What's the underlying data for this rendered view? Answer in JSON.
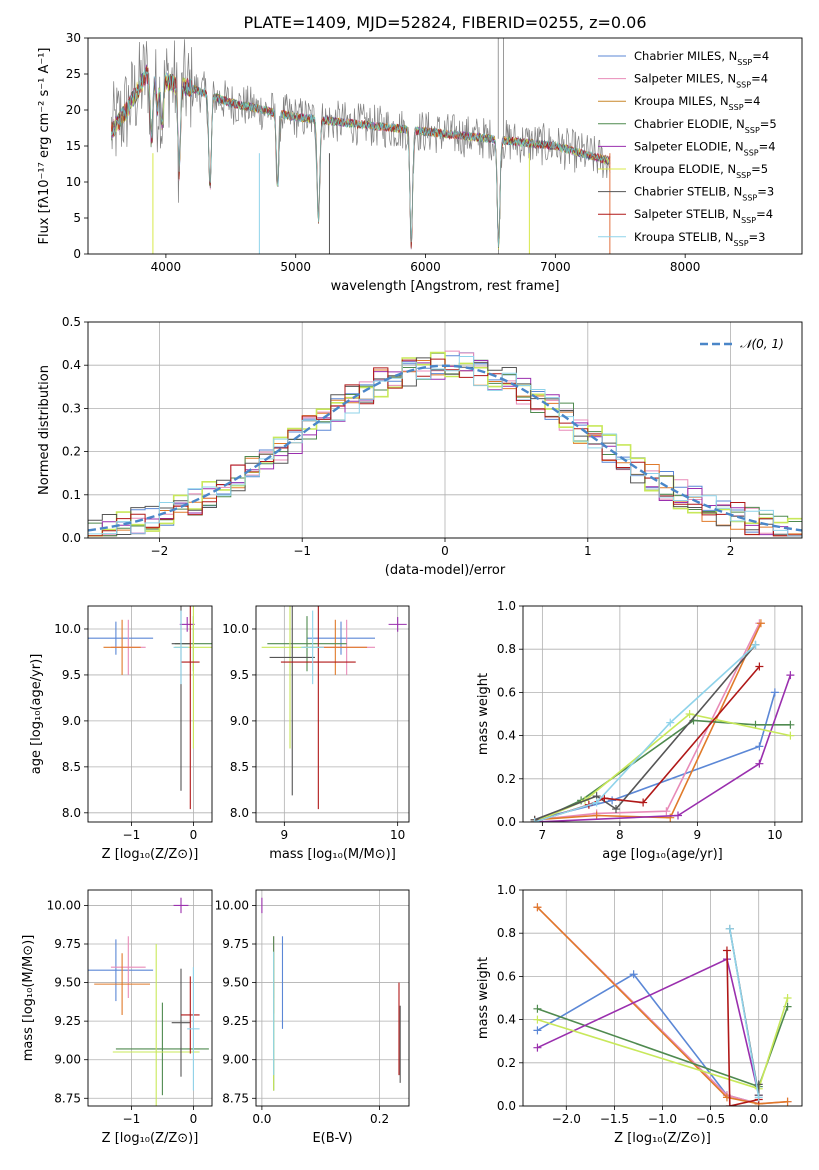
{
  "figure": {
    "title": "PLATE=1409, MJD=52824, FIBERID=0255, z=0.06"
  },
  "chart_data": [
    {
      "id": "spectrum",
      "type": "line",
      "xlabel": "wavelength [Angstrom, rest frame]",
      "ylabel": "Flux [fλ10⁻¹⁷ erg cm⁻² s⁻¹ A⁻¹]",
      "xlim": [
        3400,
        8900
      ],
      "ylim": [
        0,
        30
      ],
      "xticks": [
        4000,
        5000,
        6000,
        7000,
        8000
      ],
      "yticks": [
        0,
        5,
        10,
        15,
        20,
        25,
        30
      ],
      "legend_position": "top-right",
      "series": [
        {
          "name": "Chabrier MILES, N",
          "sub": "SSP",
          "suffix": "=4",
          "color": "#5b87d6"
        },
        {
          "name": "Salpeter MILES, N",
          "sub": "SSP",
          "suffix": "=4",
          "color": "#e88bb8"
        },
        {
          "name": "Kroupa MILES, N",
          "sub": "SSP",
          "suffix": "=4",
          "color": "#c9872a"
        },
        {
          "name": "Chabrier ELODIE, N",
          "sub": "SSP",
          "suffix": "=5",
          "color": "#4f8a4f"
        },
        {
          "name": "Salpeter ELODIE, N",
          "sub": "SSP",
          "suffix": "=4",
          "color": "#9a2fae"
        },
        {
          "name": "Kroupa ELODIE, N",
          "sub": "SSP",
          "suffix": "=5",
          "color": "#d8e84a"
        },
        {
          "name": "Chabrier STELIB, N",
          "sub": "SSP",
          "suffix": "=3",
          "color": "#555555"
        },
        {
          "name": "Salpeter STELIB, N",
          "sub": "SSP",
          "suffix": "=4",
          "color": "#b01818"
        },
        {
          "name": "Kroupa STELIB, N",
          "sub": "SSP",
          "suffix": "=3",
          "color": "#8fd3ea"
        }
      ],
      "data_color": "#808080",
      "model_color": "#6ed0d0",
      "red_tail_color": "#e07040",
      "continuum_x": [
        3580,
        3700,
        3850,
        4000,
        4200,
        4500,
        5000,
        5500,
        6000,
        6500,
        7000,
        7400
      ],
      "continuum_y": [
        17,
        20,
        25,
        24,
        23,
        21,
        19,
        18,
        17,
        16,
        15,
        13
      ]
    },
    {
      "id": "residuals",
      "type": "area",
      "xlabel": "(data-model)/error",
      "ylabel": "Normed distribution",
      "xlim": [
        -2.5,
        2.5
      ],
      "ylim": [
        0,
        0.5
      ],
      "xticks": [
        -2,
        -1,
        0,
        1,
        2
      ],
      "yticks": [
        0.0,
        0.1,
        0.2,
        0.3,
        0.4,
        0.5
      ],
      "grid": true,
      "legend_position": "top-right",
      "legend_label": "𝒩(0, 1)",
      "normal_color": "#4a86c8",
      "hist_colors": [
        "#5b87d6",
        "#e88bb8",
        "#e07a2a",
        "#4f8a4f",
        "#9a2fae",
        "#c8e85a",
        "#555555",
        "#b01818",
        "#8fd3ea"
      ],
      "bin_width": 0.1
    },
    {
      "id": "age_vs_z",
      "type": "scatter",
      "xlabel": "Z [log₁₀(Z/Z⊙)]",
      "ylabel": "age  [log₁₀(age/yr)]",
      "xlim": [
        -1.7,
        0.3
      ],
      "ylim": [
        7.9,
        10.25
      ],
      "xticks": [
        -1,
        0
      ],
      "yticks": [
        8.0,
        8.5,
        9.0,
        9.5,
        10.0
      ],
      "grid": true,
      "points": [
        {
          "x": -1.25,
          "xerr": 0.6,
          "y": 9.9,
          "yerr": 0.18,
          "c": 0
        },
        {
          "x": -1.05,
          "xerr": 0.28,
          "y": 9.8,
          "yerr": 0.3,
          "c": 1
        },
        {
          "x": -1.15,
          "xerr": 0.3,
          "y": 9.8,
          "yerr": 0.3,
          "c": 2
        },
        {
          "x": 0.0,
          "xerr": 0.3,
          "y": 9.84,
          "yerr": 0.3,
          "c": 3
        },
        {
          "x": -0.1,
          "xerr": 0.12,
          "y": 10.05,
          "yerr": 0.08,
          "c": 4
        },
        {
          "x": 0.0,
          "xerr": 0.3,
          "y": 9.8,
          "yerr": 1.1,
          "c": 5
        },
        {
          "x": -0.2,
          "xerr": 0.15,
          "y": 9.84,
          "yerr": 1.6,
          "c": 6
        },
        {
          "x": -0.05,
          "xerr": 0.15,
          "y": 9.64,
          "yerr": 1.6,
          "c": 7
        },
        {
          "x": -0.2,
          "xerr": 0.12,
          "y": 9.8,
          "yerr": 0.4,
          "c": 8
        }
      ]
    },
    {
      "id": "age_vs_mass",
      "type": "scatter",
      "xlabel": "mass [log₁₀(M/M⊙)]",
      "ylabel": "",
      "xlim": [
        8.75,
        10.1
      ],
      "ylim": [
        7.9,
        10.25
      ],
      "xticks": [
        9,
        10
      ],
      "yticks": [
        8.0,
        8.5,
        9.0,
        9.5,
        10.0
      ],
      "grid": true,
      "points": [
        {
          "x": 9.5,
          "xerr": 0.3,
          "y": 9.9,
          "yerr": 0.18,
          "c": 0
        },
        {
          "x": 9.55,
          "xerr": 0.25,
          "y": 9.8,
          "yerr": 0.3,
          "c": 1
        },
        {
          "x": 9.45,
          "xerr": 0.28,
          "y": 9.8,
          "yerr": 0.3,
          "c": 2
        },
        {
          "x": 9.2,
          "xerr": 0.35,
          "y": 9.84,
          "yerr": 0.3,
          "c": 3
        },
        {
          "x": 10.0,
          "xerr": 0.08,
          "y": 10.05,
          "yerr": 0.08,
          "c": 4
        },
        {
          "x": 9.05,
          "xerr": 0.25,
          "y": 9.8,
          "yerr": 1.1,
          "c": 5
        },
        {
          "x": 9.07,
          "xerr": 0.2,
          "y": 9.69,
          "yerr": 1.5,
          "c": 6
        },
        {
          "x": 9.3,
          "xerr": 0.33,
          "y": 9.64,
          "yerr": 1.6,
          "c": 7
        },
        {
          "x": 9.25,
          "xerr": 0.1,
          "y": 9.8,
          "yerr": 0.4,
          "c": 8
        }
      ]
    },
    {
      "id": "mass_weight_vs_age",
      "type": "line",
      "xlabel": "age  [log₁₀(age/yr)]",
      "ylabel": "mass weight",
      "xlim": [
        6.75,
        10.35
      ],
      "ylim": [
        0,
        1
      ],
      "xticks": [
        7,
        8,
        9,
        10
      ],
      "yticks": [
        0.0,
        0.2,
        0.4,
        0.6,
        0.8,
        1.0
      ],
      "grid": true,
      "series": [
        {
          "c": 0,
          "x": [
            6.9,
            7.9,
            9.8,
            10.0
          ],
          "y": [
            0.01,
            0.1,
            0.35,
            0.6
          ]
        },
        {
          "c": 1,
          "x": [
            6.9,
            7.7,
            8.6,
            9.8
          ],
          "y": [
            0.01,
            0.04,
            0.05,
            0.92
          ]
        },
        {
          "c": 2,
          "x": [
            6.9,
            7.7,
            8.65,
            9.82
          ],
          "y": [
            0.01,
            0.03,
            0.02,
            0.92
          ]
        },
        {
          "c": 3,
          "x": [
            6.9,
            7.5,
            8.95,
            9.75,
            10.2
          ],
          "y": [
            0.0,
            0.1,
            0.47,
            0.45,
            0.45
          ]
        },
        {
          "c": 4,
          "x": [
            6.9,
            8.75,
            9.8,
            10.2
          ],
          "y": [
            0.0,
            0.03,
            0.27,
            0.68
          ]
        },
        {
          "c": 5,
          "x": [
            6.9,
            7.55,
            8.9,
            10.2
          ],
          "y": [
            0.0,
            0.1,
            0.5,
            0.4
          ]
        },
        {
          "c": 6,
          "x": [
            6.9,
            7.7,
            7.95,
            9.75
          ],
          "y": [
            0.01,
            0.12,
            0.06,
            0.82
          ]
        },
        {
          "c": 7,
          "x": [
            6.9,
            7.6,
            7.8,
            8.3,
            9.8
          ],
          "y": [
            0.0,
            0.08,
            0.11,
            0.09,
            0.72
          ]
        },
        {
          "c": 8,
          "x": [
            6.9,
            7.7,
            8.65,
            9.75
          ],
          "y": [
            0.0,
            0.09,
            0.46,
            0.82
          ]
        }
      ]
    },
    {
      "id": "mass_vs_z",
      "type": "scatter",
      "xlabel": "Z [log₁₀(Z/Z⊙)]",
      "ylabel": "mass [log₁₀(M/M⊙)]",
      "xlim": [
        -1.7,
        0.3
      ],
      "ylim": [
        8.7,
        10.1
      ],
      "xticks": [
        -1,
        0
      ],
      "yticks": [
        8.75,
        9.0,
        9.25,
        9.5,
        9.75,
        10.0
      ],
      "grid": true,
      "points": [
        {
          "x": -1.25,
          "xerr": 0.6,
          "y": 9.58,
          "yerr": 0.2,
          "c": 0
        },
        {
          "x": -1.05,
          "xerr": 0.28,
          "y": 9.6,
          "yerr": 0.2,
          "c": 1
        },
        {
          "x": -1.15,
          "xerr": 0.45,
          "y": 9.49,
          "yerr": 0.2,
          "c": 2
        },
        {
          "x": -0.5,
          "xerr": 0.75,
          "y": 9.07,
          "yerr": 0.3,
          "c": 3
        },
        {
          "x": -0.2,
          "xerr": 0.12,
          "y": 10.0,
          "yerr": 0.05,
          "c": 4
        },
        {
          "x": -0.6,
          "xerr": 0.7,
          "y": 9.05,
          "yerr": 0.7,
          "c": 5
        },
        {
          "x": -0.2,
          "xerr": 0.15,
          "y": 9.24,
          "yerr": 0.35,
          "c": 6
        },
        {
          "x": -0.05,
          "xerr": 0.15,
          "y": 9.29,
          "yerr": 0.25,
          "c": 7
        },
        {
          "x": 0.0,
          "xerr": 0.1,
          "y": 9.2,
          "yerr": 0.4,
          "c": 8
        }
      ]
    },
    {
      "id": "mass_vs_ebv",
      "type": "scatter",
      "xlabel": "E(B-V)",
      "ylabel": "",
      "xlim": [
        -0.01,
        0.25
      ],
      "ylim": [
        8.7,
        10.1
      ],
      "xticks": [
        0.0,
        0.2
      ],
      "yticks": [
        8.75,
        9.0,
        9.25,
        9.5,
        9.75,
        10.0
      ],
      "grid": true,
      "points": [
        {
          "x": 0.035,
          "xerr": 0.0,
          "y": 9.5,
          "yerr": 0.3,
          "c": 0
        },
        {
          "x": 0.02,
          "xerr": 0.0,
          "y": 9.6,
          "yerr": 0.2,
          "c": 1
        },
        {
          "x": 0.02,
          "xerr": 0.0,
          "y": 9.5,
          "yerr": 0.2,
          "c": 2
        },
        {
          "x": 0.02,
          "xerr": 0.0,
          "y": 9.3,
          "yerr": 0.5,
          "c": 3
        },
        {
          "x": 0.0,
          "xerr": 0.0,
          "y": 10.0,
          "yerr": 0.05,
          "c": 4
        },
        {
          "x": 0.02,
          "xerr": 0.0,
          "y": 9.25,
          "yerr": 0.45,
          "c": 5
        },
        {
          "x": 0.235,
          "xerr": 0.0,
          "y": 9.1,
          "yerr": 0.25,
          "c": 6
        },
        {
          "x": 0.233,
          "xerr": 0.0,
          "y": 9.2,
          "yerr": 0.3,
          "c": 7
        },
        {
          "x": 0.02,
          "xerr": 0.0,
          "y": 9.3,
          "yerr": 0.4,
          "c": 8
        }
      ]
    },
    {
      "id": "mass_weight_vs_z",
      "type": "line",
      "xlabel": "Z [log₁₀(Z/Z⊙)]",
      "ylabel": "mass weight",
      "xlim": [
        -2.45,
        0.45
      ],
      "ylim": [
        0,
        1
      ],
      "xticks": [
        -2.0,
        -1.5,
        -1.0,
        -0.5,
        0.0
      ],
      "yticks": [
        0.0,
        0.2,
        0.4,
        0.6,
        0.8,
        1.0
      ],
      "grid": true,
      "series": [
        {
          "c": 0,
          "x": [
            -2.3,
            -1.3,
            -0.33,
            0.0,
            0.0
          ],
          "y": [
            0.35,
            0.61,
            0.05,
            0.01,
            0.09
          ]
        },
        {
          "c": 1,
          "x": [
            -2.3,
            -0.33,
            0.0,
            0.3
          ],
          "y": [
            0.92,
            0.05,
            0.01,
            0.02
          ]
        },
        {
          "c": 2,
          "x": [
            -2.3,
            -0.33,
            0.0,
            0.3
          ],
          "y": [
            0.92,
            0.04,
            0.01,
            0.02
          ]
        },
        {
          "c": 3,
          "x": [
            -2.3,
            0.0,
            0.3
          ],
          "y": [
            0.45,
            0.09,
            0.46
          ]
        },
        {
          "c": 4,
          "x": [
            -2.3,
            -0.33,
            0.0
          ],
          "y": [
            0.27,
            0.68,
            0.05
          ]
        },
        {
          "c": 5,
          "x": [
            -2.3,
            0.0,
            0.3
          ],
          "y": [
            0.4,
            0.08,
            0.5
          ]
        },
        {
          "c": 6,
          "x": [
            -0.3,
            0.0,
            0.0
          ],
          "y": [
            0.82,
            0.05,
            0.1
          ]
        },
        {
          "c": 7,
          "x": [
            -0.33,
            -0.3,
            0.0
          ],
          "y": [
            0.72,
            0.0,
            0.03
          ]
        },
        {
          "c": 8,
          "x": [
            -0.3,
            0.0
          ],
          "y": [
            0.82,
            0.04
          ]
        }
      ]
    }
  ],
  "series_colors": [
    "#5b87d6",
    "#e88bb8",
    "#e07a2a",
    "#4f8a4f",
    "#9a2fae",
    "#c8e85a",
    "#555555",
    "#b01818",
    "#8fd3ea"
  ]
}
